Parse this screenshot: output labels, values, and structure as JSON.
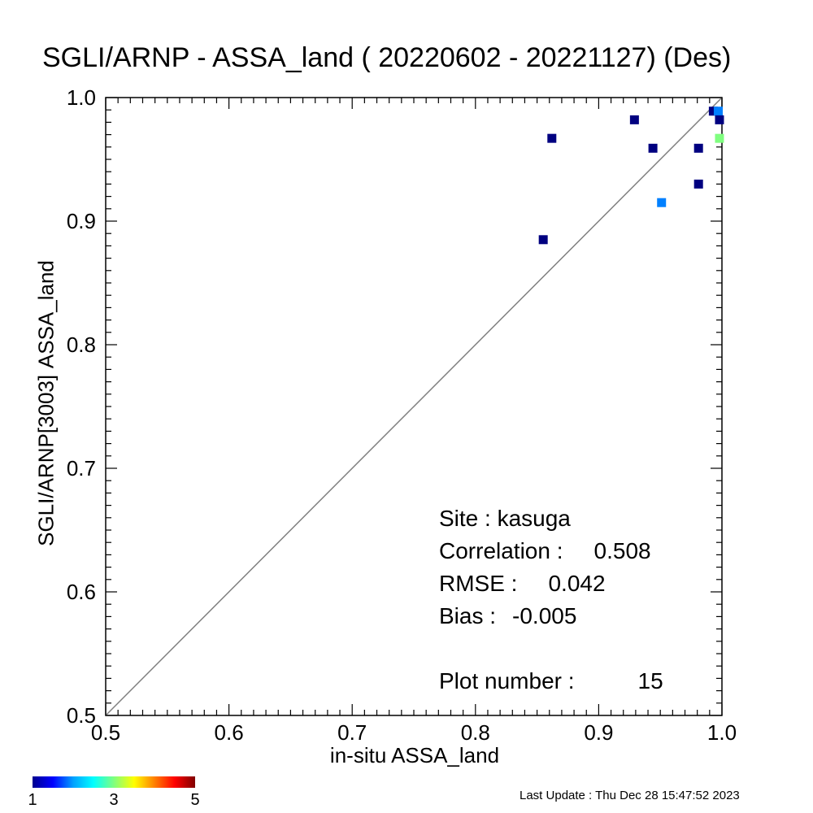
{
  "title": "SGLI/ARNP - ASSA_land ( 20220602 - 20221127) (Des)",
  "footer": "Last Update : Thu Dec 28 15:47:52 2023",
  "stats": {
    "site_key": "Site : ",
    "site_val": "kasuga",
    "corr_key": "Correlation :",
    "corr_val": "0.508",
    "rmse_key": "RMSE :",
    "rmse_val": "0.042",
    "bias_key": "Bias :",
    "bias_val": "-0.005",
    "plot_key": "Plot number :",
    "plot_val": "15"
  },
  "colorbar": {
    "ticks": [
      "1",
      "3",
      "5"
    ],
    "range": [
      1,
      5
    ],
    "colors": [
      "#00008f",
      "#0000ff",
      "#00a0ff",
      "#00ffff",
      "#7fff7f",
      "#ffff00",
      "#ff8000",
      "#ff0000",
      "#800000"
    ]
  },
  "chart_data": {
    "type": "scatter",
    "title": "SGLI/ARNP - ASSA_land ( 20220602 - 20221127) (Des)",
    "xlabel": "in-situ ASSA_land",
    "ylabel": "SGLI/ARNP[3003]    ASSA_land",
    "xlim": [
      0.5,
      1.0
    ],
    "ylim": [
      0.5,
      1.0
    ],
    "xticks": [
      "0.5",
      "0.6",
      "0.7",
      "0.8",
      "0.9",
      "1.0"
    ],
    "yticks": [
      "0.5",
      "0.6",
      "0.7",
      "0.8",
      "0.9",
      "1.0"
    ],
    "one_to_one_line": true,
    "grid": false,
    "points": [
      {
        "x": 0.855,
        "y": 0.885,
        "count": 1
      },
      {
        "x": 0.862,
        "y": 0.967,
        "count": 1
      },
      {
        "x": 0.929,
        "y": 0.982,
        "count": 1
      },
      {
        "x": 0.944,
        "y": 0.959,
        "count": 1
      },
      {
        "x": 0.951,
        "y": 0.915,
        "count": 2
      },
      {
        "x": 0.981,
        "y": 0.959,
        "count": 1
      },
      {
        "x": 0.981,
        "y": 0.93,
        "count": 1
      },
      {
        "x": 0.993,
        "y": 0.989,
        "count": 1
      },
      {
        "x": 0.997,
        "y": 0.989,
        "count": 2
      },
      {
        "x": 0.998,
        "y": 0.982,
        "count": 1
      },
      {
        "x": 0.998,
        "y": 0.967,
        "count": 3
      }
    ]
  }
}
